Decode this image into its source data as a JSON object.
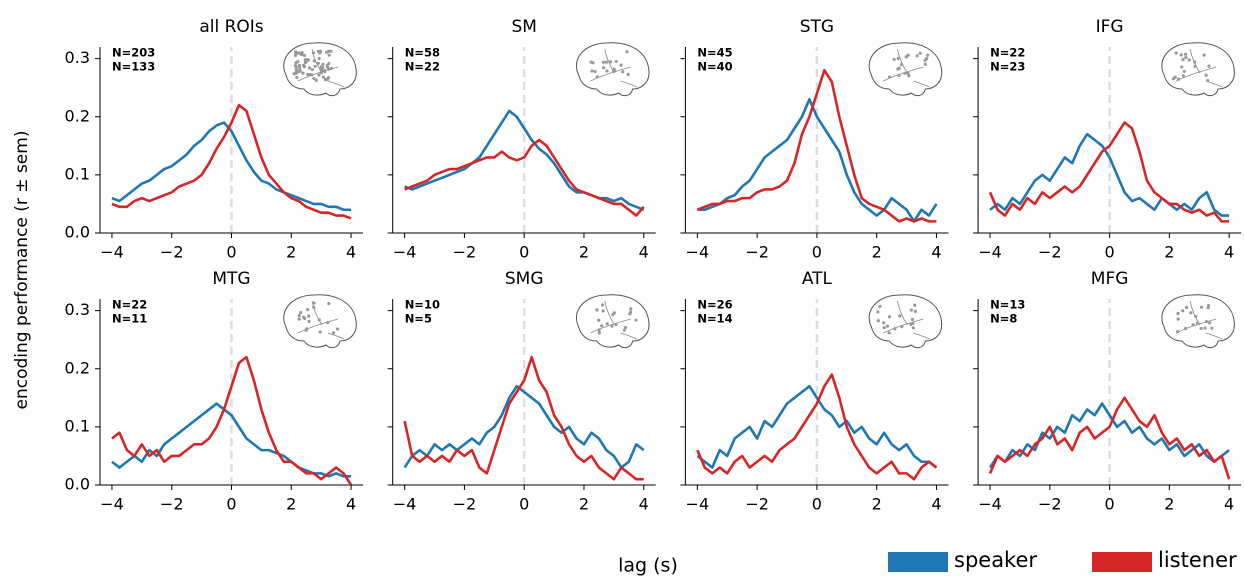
{
  "xlabel": "lag (s)",
  "ylabel": "encoding performance (r ± sem)",
  "chart_data": [
    {
      "type": "line",
      "title": "all ROIs",
      "x": [
        -4,
        -3.75,
        -3.5,
        -3.25,
        -3,
        -2.75,
        -2.5,
        -2.25,
        -2,
        -1.75,
        -1.5,
        -1.25,
        -1,
        -0.75,
        -0.5,
        -0.25,
        0,
        0.25,
        0.5,
        0.75,
        1,
        1.25,
        1.5,
        1.75,
        2,
        2.25,
        2.5,
        2.75,
        3,
        3.25,
        3.5,
        3.75,
        4
      ],
      "xlim": [
        -4.4,
        4.4
      ],
      "ylim": [
        0,
        0.32
      ],
      "xticks": [
        -4,
        -2,
        0,
        2,
        4
      ],
      "yticks": [
        {
          "value": 0,
          "label": "0.0"
        },
        0.1,
        0.2,
        0.3
      ],
      "vline": 0,
      "annotations": [
        {
          "text": "N=203",
          "color": "#1f77b4"
        },
        {
          "text": "N=133",
          "color": "#d62728"
        }
      ],
      "series": [
        {
          "name": "speaker",
          "color": "#1f77b4",
          "values": [
            0.06,
            0.055,
            0.065,
            0.075,
            0.085,
            0.09,
            0.1,
            0.11,
            0.115,
            0.125,
            0.135,
            0.15,
            0.16,
            0.175,
            0.185,
            0.19,
            0.175,
            0.15,
            0.125,
            0.105,
            0.09,
            0.085,
            0.075,
            0.07,
            0.065,
            0.06,
            0.055,
            0.05,
            0.05,
            0.045,
            0.045,
            0.04,
            0.04
          ]
        },
        {
          "name": "listener",
          "color": "#d62728",
          "values": [
            0.05,
            0.045,
            0.045,
            0.055,
            0.06,
            0.055,
            0.06,
            0.065,
            0.07,
            0.08,
            0.085,
            0.09,
            0.1,
            0.12,
            0.145,
            0.165,
            0.19,
            0.22,
            0.21,
            0.17,
            0.13,
            0.1,
            0.085,
            0.07,
            0.06,
            0.055,
            0.045,
            0.04,
            0.035,
            0.035,
            0.03,
            0.03,
            0.025
          ]
        }
      ]
    },
    {
      "type": "line",
      "title": "SM",
      "x": [
        -4,
        -3.75,
        -3.5,
        -3.25,
        -3,
        -2.75,
        -2.5,
        -2.25,
        -2,
        -1.75,
        -1.5,
        -1.25,
        -1,
        -0.75,
        -0.5,
        -0.25,
        0,
        0.25,
        0.5,
        0.75,
        1,
        1.25,
        1.5,
        1.75,
        2,
        2.25,
        2.5,
        2.75,
        3,
        3.25,
        3.5,
        3.75,
        4
      ],
      "xlim": [
        -4.4,
        4.4
      ],
      "ylim": [
        0,
        0.32
      ],
      "xticks": [
        -4,
        -2,
        0,
        2,
        4
      ],
      "yticks": [
        0,
        0.1,
        0.2,
        0.3
      ],
      "vline": 0,
      "annotations": [
        {
          "text": "N=58",
          "color": "#1f77b4"
        },
        {
          "text": "N=22",
          "color": "#d62728"
        }
      ],
      "series": [
        {
          "name": "speaker",
          "color": "#1f77b4",
          "values": [
            0.08,
            0.075,
            0.08,
            0.085,
            0.09,
            0.095,
            0.1,
            0.105,
            0.11,
            0.12,
            0.13,
            0.15,
            0.17,
            0.19,
            0.21,
            0.2,
            0.18,
            0.16,
            0.145,
            0.135,
            0.12,
            0.1,
            0.08,
            0.07,
            0.07,
            0.065,
            0.06,
            0.06,
            0.055,
            0.06,
            0.05,
            0.045,
            0.04
          ]
        },
        {
          "name": "listener",
          "color": "#d62728",
          "values": [
            0.075,
            0.08,
            0.085,
            0.09,
            0.1,
            0.105,
            0.11,
            0.11,
            0.115,
            0.12,
            0.125,
            0.13,
            0.13,
            0.14,
            0.13,
            0.125,
            0.13,
            0.15,
            0.16,
            0.15,
            0.13,
            0.11,
            0.09,
            0.075,
            0.07,
            0.065,
            0.06,
            0.055,
            0.05,
            0.05,
            0.04,
            0.03,
            0.045
          ]
        }
      ]
    },
    {
      "type": "line",
      "title": "STG",
      "x": [
        -4,
        -3.75,
        -3.5,
        -3.25,
        -3,
        -2.75,
        -2.5,
        -2.25,
        -2,
        -1.75,
        -1.5,
        -1.25,
        -1,
        -0.75,
        -0.5,
        -0.25,
        0,
        0.25,
        0.5,
        0.75,
        1,
        1.25,
        1.5,
        1.75,
        2,
        2.25,
        2.5,
        2.75,
        3,
        3.25,
        3.5,
        3.75,
        4
      ],
      "xlim": [
        -4.4,
        4.4
      ],
      "ylim": [
        0,
        0.32
      ],
      "xticks": [
        -4,
        -2,
        0,
        2,
        4
      ],
      "yticks": [
        0,
        0.1,
        0.2,
        0.3
      ],
      "vline": 0,
      "annotations": [
        {
          "text": "N=45",
          "color": "#1f77b4"
        },
        {
          "text": "N=40",
          "color": "#d62728"
        }
      ],
      "series": [
        {
          "name": "speaker",
          "color": "#1f77b4",
          "values": [
            0.04,
            0.04,
            0.045,
            0.05,
            0.06,
            0.065,
            0.08,
            0.09,
            0.11,
            0.13,
            0.14,
            0.15,
            0.16,
            0.18,
            0.2,
            0.23,
            0.2,
            0.18,
            0.16,
            0.14,
            0.1,
            0.07,
            0.05,
            0.04,
            0.03,
            0.04,
            0.06,
            0.05,
            0.04,
            0.02,
            0.04,
            0.03,
            0.05
          ]
        },
        {
          "name": "listener",
          "color": "#d62728",
          "values": [
            0.04,
            0.045,
            0.05,
            0.05,
            0.055,
            0.055,
            0.06,
            0.06,
            0.07,
            0.075,
            0.075,
            0.08,
            0.09,
            0.12,
            0.17,
            0.2,
            0.24,
            0.28,
            0.26,
            0.2,
            0.15,
            0.1,
            0.06,
            0.05,
            0.045,
            0.04,
            0.03,
            0.02,
            0.025,
            0.02,
            0.025,
            0.02,
            0.02
          ]
        }
      ]
    },
    {
      "type": "line",
      "title": "IFG",
      "x": [
        -4,
        -3.75,
        -3.5,
        -3.25,
        -3,
        -2.75,
        -2.5,
        -2.25,
        -2,
        -1.75,
        -1.5,
        -1.25,
        -1,
        -0.75,
        -0.5,
        -0.25,
        0,
        0.25,
        0.5,
        0.75,
        1,
        1.25,
        1.5,
        1.75,
        2,
        2.25,
        2.5,
        2.75,
        3,
        3.25,
        3.5,
        3.75,
        4
      ],
      "xlim": [
        -4.4,
        4.4
      ],
      "ylim": [
        0,
        0.32
      ],
      "xticks": [
        -4,
        -2,
        0,
        2,
        4
      ],
      "yticks": [
        0,
        0.1,
        0.2,
        0.3
      ],
      "vline": 0,
      "annotations": [
        {
          "text": "N=22",
          "color": "#1f77b4"
        },
        {
          "text": "N=23",
          "color": "#d62728"
        }
      ],
      "series": [
        {
          "name": "speaker",
          "color": "#1f77b4",
          "values": [
            0.04,
            0.05,
            0.04,
            0.06,
            0.05,
            0.07,
            0.09,
            0.1,
            0.09,
            0.11,
            0.13,
            0.12,
            0.15,
            0.17,
            0.16,
            0.15,
            0.13,
            0.1,
            0.07,
            0.055,
            0.06,
            0.05,
            0.04,
            0.06,
            0.05,
            0.04,
            0.05,
            0.04,
            0.06,
            0.07,
            0.04,
            0.03,
            0.03
          ]
        },
        {
          "name": "listener",
          "color": "#d62728",
          "values": [
            0.07,
            0.04,
            0.03,
            0.05,
            0.04,
            0.06,
            0.05,
            0.07,
            0.06,
            0.07,
            0.08,
            0.07,
            0.08,
            0.1,
            0.12,
            0.14,
            0.15,
            0.17,
            0.19,
            0.18,
            0.14,
            0.09,
            0.07,
            0.06,
            0.05,
            0.05,
            0.04,
            0.035,
            0.04,
            0.03,
            0.035,
            0.02,
            0.02
          ]
        }
      ]
    },
    {
      "type": "line",
      "title": "MTG",
      "x": [
        -4,
        -3.75,
        -3.5,
        -3.25,
        -3,
        -2.75,
        -2.5,
        -2.25,
        -2,
        -1.75,
        -1.5,
        -1.25,
        -1,
        -0.75,
        -0.5,
        -0.25,
        0,
        0.25,
        0.5,
        0.75,
        1,
        1.25,
        1.5,
        1.75,
        2,
        2.25,
        2.5,
        2.75,
        3,
        3.25,
        3.5,
        3.75,
        4
      ],
      "xlim": [
        -4.4,
        4.4
      ],
      "ylim": [
        0,
        0.32
      ],
      "xticks": [
        -4,
        -2,
        0,
        2,
        4
      ],
      "yticks": [
        {
          "value": 0,
          "label": "0.0"
        },
        0.1,
        0.2,
        0.3
      ],
      "vline": 0,
      "annotations": [
        {
          "text": "N=22",
          "color": "#1f77b4"
        },
        {
          "text": "N=11",
          "color": "#d62728"
        }
      ],
      "series": [
        {
          "name": "speaker",
          "color": "#1f77b4",
          "values": [
            0.04,
            0.03,
            0.04,
            0.05,
            0.04,
            0.06,
            0.05,
            0.07,
            0.08,
            0.09,
            0.1,
            0.11,
            0.12,
            0.13,
            0.14,
            0.13,
            0.12,
            0.1,
            0.08,
            0.07,
            0.06,
            0.06,
            0.055,
            0.05,
            0.04,
            0.03,
            0.025,
            0.02,
            0.02,
            0.015,
            0.02,
            0.015,
            0.015
          ]
        },
        {
          "name": "listener",
          "color": "#d62728",
          "values": [
            0.08,
            0.09,
            0.06,
            0.05,
            0.07,
            0.05,
            0.06,
            0.04,
            0.05,
            0.05,
            0.06,
            0.07,
            0.07,
            0.08,
            0.1,
            0.13,
            0.17,
            0.21,
            0.22,
            0.18,
            0.13,
            0.09,
            0.06,
            0.04,
            0.04,
            0.03,
            0.02,
            0.02,
            0.01,
            0.02,
            0.03,
            0.02,
            0
          ]
        }
      ]
    },
    {
      "type": "line",
      "title": "SMG",
      "x": [
        -4,
        -3.75,
        -3.5,
        -3.25,
        -3,
        -2.75,
        -2.5,
        -2.25,
        -2,
        -1.75,
        -1.5,
        -1.25,
        -1,
        -0.75,
        -0.5,
        -0.25,
        0,
        0.25,
        0.5,
        0.75,
        1,
        1.25,
        1.5,
        1.75,
        2,
        2.25,
        2.5,
        2.75,
        3,
        3.25,
        3.5,
        3.75,
        4
      ],
      "xlim": [
        -4.4,
        4.4
      ],
      "ylim": [
        0,
        0.32
      ],
      "xticks": [
        -4,
        -2,
        0,
        2,
        4
      ],
      "yticks": [
        0,
        0.1,
        0.2,
        0.3
      ],
      "vline": 0,
      "annotations": [
        {
          "text": "N=10",
          "color": "#1f77b4"
        },
        {
          "text": "N=5",
          "color": "#d62728"
        }
      ],
      "series": [
        {
          "name": "speaker",
          "color": "#1f77b4",
          "values": [
            0.03,
            0.05,
            0.06,
            0.05,
            0.07,
            0.06,
            0.07,
            0.06,
            0.07,
            0.08,
            0.07,
            0.09,
            0.1,
            0.12,
            0.15,
            0.17,
            0.16,
            0.15,
            0.14,
            0.12,
            0.1,
            0.09,
            0.1,
            0.08,
            0.07,
            0.09,
            0.08,
            0.06,
            0.05,
            0.03,
            0.04,
            0.07,
            0.06
          ]
        },
        {
          "name": "listener",
          "color": "#d62728",
          "values": [
            0.11,
            0.05,
            0.04,
            0.05,
            0.04,
            0.05,
            0.04,
            0.06,
            0.05,
            0.06,
            0.03,
            0.02,
            0.06,
            0.1,
            0.14,
            0.16,
            0.18,
            0.22,
            0.18,
            0.16,
            0.12,
            0.1,
            0.07,
            0.05,
            0.04,
            0.05,
            0.03,
            0.02,
            0.01,
            0.03,
            0.02,
            0.01,
            0.01
          ]
        }
      ]
    },
    {
      "type": "line",
      "title": "ATL",
      "x": [
        -4,
        -3.75,
        -3.5,
        -3.25,
        -3,
        -2.75,
        -2.5,
        -2.25,
        -2,
        -1.75,
        -1.5,
        -1.25,
        -1,
        -0.75,
        -0.5,
        -0.25,
        0,
        0.25,
        0.5,
        0.75,
        1,
        1.25,
        1.5,
        1.75,
        2,
        2.25,
        2.5,
        2.75,
        3,
        3.25,
        3.5,
        3.75,
        4
      ],
      "xlim": [
        -4.4,
        4.4
      ],
      "ylim": [
        0,
        0.32
      ],
      "xticks": [
        -4,
        -2,
        0,
        2,
        4
      ],
      "yticks": [
        0,
        0.1,
        0.2,
        0.3
      ],
      "vline": 0,
      "annotations": [
        {
          "text": "N=26",
          "color": "#1f77b4"
        },
        {
          "text": "N=14",
          "color": "#d62728"
        }
      ],
      "series": [
        {
          "name": "speaker",
          "color": "#1f77b4",
          "values": [
            0.05,
            0.04,
            0.03,
            0.06,
            0.05,
            0.08,
            0.09,
            0.1,
            0.08,
            0.11,
            0.1,
            0.12,
            0.14,
            0.15,
            0.16,
            0.17,
            0.15,
            0.13,
            0.12,
            0.1,
            0.11,
            0.09,
            0.1,
            0.08,
            0.07,
            0.09,
            0.07,
            0.06,
            0.07,
            0.05,
            0.04,
            0.04,
            0.03
          ]
        },
        {
          "name": "listener",
          "color": "#d62728",
          "values": [
            0.06,
            0.03,
            0.02,
            0.03,
            0.02,
            0.04,
            0.05,
            0.03,
            0.04,
            0.05,
            0.04,
            0.06,
            0.07,
            0.08,
            0.1,
            0.12,
            0.14,
            0.17,
            0.19,
            0.15,
            0.1,
            0.07,
            0.05,
            0.03,
            0.02,
            0.03,
            0.04,
            0.02,
            0.02,
            0.01,
            0.03,
            0.04,
            0.03
          ]
        }
      ]
    },
    {
      "type": "line",
      "title": "MFG",
      "x": [
        -4,
        -3.75,
        -3.5,
        -3.25,
        -3,
        -2.75,
        -2.5,
        -2.25,
        -2,
        -1.75,
        -1.5,
        -1.25,
        -1,
        -0.75,
        -0.5,
        -0.25,
        0,
        0.25,
        0.5,
        0.75,
        1,
        1.25,
        1.5,
        1.75,
        2,
        2.25,
        2.5,
        2.75,
        3,
        3.25,
        3.5,
        3.75,
        4
      ],
      "xlim": [
        -4.4,
        4.4
      ],
      "ylim": [
        0,
        0.32
      ],
      "xticks": [
        -4,
        -2,
        0,
        2,
        4
      ],
      "yticks": [
        0,
        0.1,
        0.2,
        0.3
      ],
      "vline": 0,
      "annotations": [
        {
          "text": "N=13",
          "color": "#1f77b4"
        },
        {
          "text": "N=8",
          "color": "#d62728"
        }
      ],
      "series": [
        {
          "name": "speaker",
          "color": "#1f77b4",
          "values": [
            0.03,
            0.05,
            0.04,
            0.06,
            0.05,
            0.07,
            0.06,
            0.09,
            0.08,
            0.1,
            0.09,
            0.12,
            0.11,
            0.13,
            0.12,
            0.14,
            0.12,
            0.1,
            0.11,
            0.09,
            0.1,
            0.08,
            0.07,
            0.08,
            0.06,
            0.07,
            0.05,
            0.06,
            0.07,
            0.05,
            0.04,
            0.05,
            0.06
          ]
        },
        {
          "name": "listener",
          "color": "#d62728",
          "values": [
            0.02,
            0.05,
            0.04,
            0.05,
            0.06,
            0.05,
            0.07,
            0.08,
            0.1,
            0.07,
            0.08,
            0.06,
            0.09,
            0.1,
            0.08,
            0.09,
            0.1,
            0.13,
            0.15,
            0.13,
            0.11,
            0.1,
            0.12,
            0.09,
            0.07,
            0.08,
            0.06,
            0.07,
            0.05,
            0.06,
            0.04,
            0.05,
            0.01
          ]
        }
      ]
    }
  ]
}
